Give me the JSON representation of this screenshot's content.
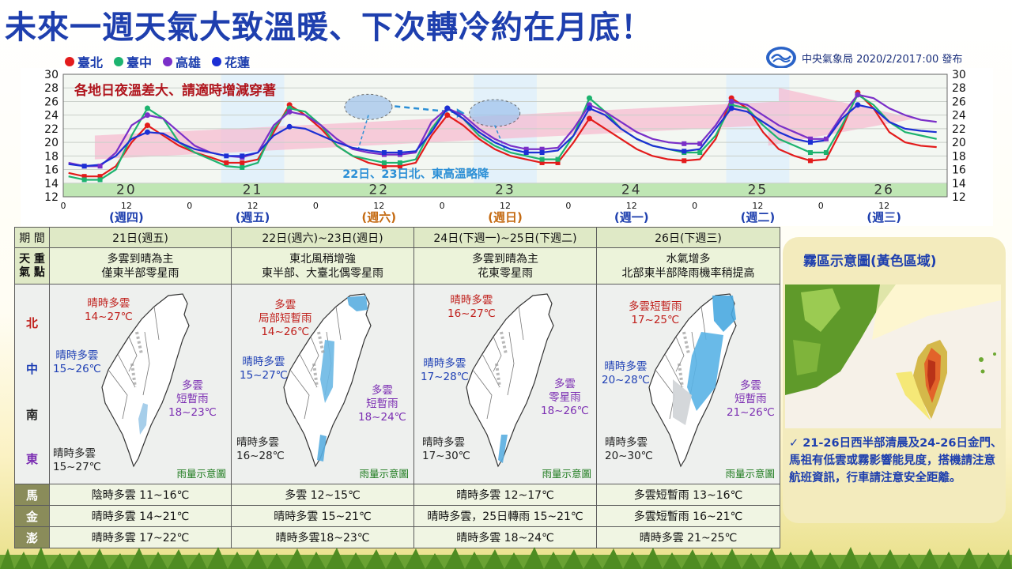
{
  "title": "未來一週天氣大致溫暖、下次轉冷約在月底！",
  "legend": [
    {
      "name": "臺北",
      "color": "#e31b1b"
    },
    {
      "name": "臺中",
      "color": "#1db36f"
    },
    {
      "name": "高雄",
      "color": "#7a2fc8"
    },
    {
      "name": "花蓮",
      "color": "#1c2fd4"
    }
  ],
  "issuer": "中央氣象局 2020/2/2017:00 發布",
  "chart_data": {
    "type": "line",
    "ylim": [
      12,
      30
    ],
    "yticks": [
      12,
      14,
      16,
      18,
      20,
      22,
      24,
      26,
      28,
      30
    ],
    "x_hours": [
      "0",
      "12",
      "0",
      "12",
      "0",
      "12",
      "0",
      "12",
      "0",
      "12",
      "0",
      "12",
      "0",
      "12"
    ],
    "day_labels": [
      "20",
      "21",
      "22",
      "23",
      "24",
      "25",
      "26"
    ],
    "weekday_labels": [
      "(週四)",
      "(週五)",
      "(週六)",
      "(週日)",
      "(週一)",
      "(週二)",
      "(週三)"
    ],
    "x": [
      1,
      4,
      7,
      10,
      13,
      16,
      19,
      22,
      25,
      28,
      31,
      34,
      37,
      40,
      43,
      46,
      49,
      52,
      55,
      58,
      61,
      64,
      67,
      70,
      73,
      76,
      79,
      82,
      85,
      88,
      91,
      94,
      97,
      100,
      103,
      106,
      109,
      112,
      115,
      118,
      121,
      124,
      127,
      130,
      133,
      136,
      139,
      142,
      145,
      148,
      151,
      154,
      157,
      160,
      163,
      166
    ],
    "series": [
      {
        "name": "臺北",
        "color": "#e31b1b",
        "values": [
          15.5,
          15,
          15,
          16.5,
          20,
          22.5,
          21,
          19.5,
          18.5,
          17.8,
          17,
          17,
          17.5,
          21.5,
          25.5,
          24,
          22,
          19.5,
          18,
          17,
          16.5,
          16.5,
          17,
          21,
          24,
          22.5,
          20.5,
          19,
          18,
          17.5,
          17,
          17,
          20,
          23.5,
          22,
          20.5,
          19,
          18,
          17.5,
          17.3,
          17.5,
          20.5,
          26.5,
          25,
          21.5,
          19,
          18,
          17.3,
          17.5,
          22,
          27.3,
          25,
          21.5,
          20,
          19.5,
          19.3
        ]
      },
      {
        "name": "臺中",
        "color": "#1db36f",
        "values": [
          15,
          14.5,
          14.5,
          16,
          21,
          25,
          23.5,
          20,
          18.5,
          17.5,
          16.5,
          16.3,
          17,
          22,
          25,
          24.5,
          22.5,
          19.5,
          18,
          17.5,
          17,
          17,
          17.5,
          22,
          25,
          23.5,
          21,
          19.5,
          18.5,
          18,
          17.5,
          17.5,
          21,
          26.5,
          24.5,
          22,
          20.5,
          19.5,
          19,
          18.5,
          18.5,
          21,
          25.5,
          25,
          22.5,
          20.5,
          19.5,
          18.5,
          18.5,
          22.5,
          27,
          25.5,
          23,
          21.5,
          21,
          20.5
        ]
      },
      {
        "name": "高雄",
        "color": "#7a2fc8",
        "values": [
          17,
          16.5,
          16.5,
          18.5,
          22.5,
          24,
          23.5,
          21.5,
          19.5,
          18.5,
          18,
          17.8,
          18.5,
          22.5,
          24.5,
          24,
          22.5,
          20.5,
          19,
          18.5,
          18.2,
          18.2,
          18.5,
          23,
          25,
          24,
          22,
          20.5,
          19.5,
          19,
          19,
          19.2,
          22,
          25.5,
          24.5,
          23,
          21.5,
          20.5,
          20,
          19.8,
          19.8,
          22.5,
          26,
          25.5,
          24,
          22.5,
          21.5,
          20.5,
          20.5,
          24,
          27,
          26.5,
          25,
          24,
          23.3,
          23
        ]
      },
      {
        "name": "花蓮",
        "color": "#1c2fd4",
        "values": [
          16.8,
          16.5,
          16.7,
          18,
          20.5,
          21.5,
          21.3,
          20,
          19,
          18.5,
          18,
          18,
          18.5,
          21,
          22.3,
          22,
          21,
          20,
          19.2,
          18.8,
          18.5,
          18.5,
          18.7,
          21.5,
          25,
          23.5,
          21.5,
          20,
          19,
          18.5,
          18.5,
          18.8,
          21,
          25,
          24,
          22,
          20.5,
          19.5,
          19,
          18.7,
          19,
          22,
          25,
          24.5,
          23,
          21.5,
          20.5,
          20,
          20.3,
          23.5,
          25.5,
          25,
          23,
          22,
          21.7,
          21.5
        ]
      }
    ],
    "annotations": {
      "warning": "各地日夜溫差大、請適時增減穿著",
      "dip": "22日、23日北、東高溫略降"
    }
  },
  "table": {
    "headers": [
      "期 間",
      "21日(週五)",
      "22日(週六)~23日(週日)",
      "24日(下週一)~25日(下週二)",
      "26日(下週三)"
    ],
    "feature_label": "天 重\n氣 點",
    "features": [
      "多雲到晴為主\n僅東半部零星雨",
      "東北風稍增強\n東半部、大臺北偶零星雨",
      "多雲到晴為主\n花東零星雨",
      "水氣增多\n北部東半部降雨機率稍提高"
    ],
    "regions": [
      "北",
      "中",
      "南",
      "東"
    ],
    "maps": [
      {
        "n": "晴時多雲\n14~27℃",
        "c": "晴時多雲\n15~26℃",
        "s": "多雲\n短暫雨\n18~23℃",
        "e": "晴時多雲\n15~27℃"
      },
      {
        "n": "多雲\n局部短暫雨\n14~26℃",
        "c": "晴時多雲\n15~27℃",
        "s": "多雲\n短暫雨\n18~24℃",
        "e": "晴時多雲\n16~28℃"
      },
      {
        "n": "晴時多雲\n16~27℃",
        "c": "晴時多雲\n17~28℃",
        "s": "多雲\n零星雨\n18~26℃",
        "e": "晴時多雲\n17~30℃"
      },
      {
        "n": "多雲短暫雨\n17~25℃",
        "c": "晴時多雲\n20~28℃",
        "s": "多雲\n短暫雨\n21~26℃",
        "e": "晴時多雲\n20~30℃"
      }
    ],
    "rain_note": "雨量示意圖",
    "islands": [
      {
        "label": "馬",
        "values": [
          "陰時多雲 11~16℃",
          "多雲 12~15℃",
          "晴時多雲 12~17℃",
          "多雲短暫雨 13~16℃"
        ]
      },
      {
        "label": "金",
        "values": [
          "晴時多雲 14~21℃",
          "晴時多雲 15~21℃",
          "晴時多雲，25日轉雨 15~21℃",
          "多雲短暫雨 16~21℃"
        ]
      },
      {
        "label": "澎",
        "values": [
          "晴時多雲 17~22℃",
          "晴時多雲18~23℃",
          "晴時多雲 18~24℃",
          "晴時多雲 21~25℃"
        ]
      }
    ]
  },
  "fog": {
    "title": "霧區示意圖(黃色區域)",
    "note": "✓ 21-26日西半部清晨及24-26日金門、馬祖有低雲或霧影響能見度，搭機請注意航班資訊，行車請注意安全距離。"
  }
}
